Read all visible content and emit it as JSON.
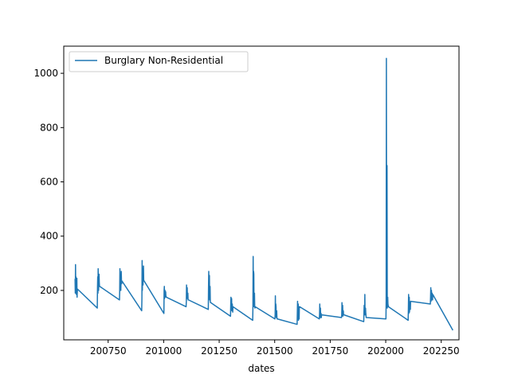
{
  "chart_data": {
    "type": "line",
    "xlabel": "dates",
    "ylabel": "",
    "xlim": [
      200550,
      202330
    ],
    "ylim": [
      18,
      1100
    ],
    "x_ticks": [
      200750,
      201000,
      201250,
      201500,
      201750,
      202000,
      202250
    ],
    "y_ticks": [
      200,
      400,
      600,
      800,
      1000
    ],
    "grid": false,
    "legend": "top-left",
    "series": [
      {
        "name": "Burglary Non-Residential",
        "color": "#1f77b4",
        "x": [
          200601,
          200602,
          200603,
          200604,
          200605,
          200606,
          200607,
          200608,
          200609,
          200610,
          200611,
          200612,
          200701,
          200702,
          200703,
          200704,
          200705,
          200706,
          200707,
          200708,
          200709,
          200710,
          200711,
          200712,
          200801,
          200802,
          200803,
          200804,
          200805,
          200806,
          200807,
          200808,
          200809,
          200810,
          200811,
          200812,
          200901,
          200902,
          200903,
          200904,
          200905,
          200906,
          200907,
          200908,
          200909,
          200910,
          200911,
          200912,
          201001,
          201002,
          201003,
          201004,
          201005,
          201006,
          201007,
          201008,
          201009,
          201010,
          201011,
          201012,
          201101,
          201102,
          201103,
          201104,
          201105,
          201106,
          201107,
          201108,
          201109,
          201110,
          201111,
          201112,
          201201,
          201202,
          201203,
          201204,
          201205,
          201206,
          201207,
          201208,
          201209,
          201210,
          201211,
          201212,
          201301,
          201302,
          201303,
          201304,
          201305,
          201306,
          201307,
          201308,
          201309,
          201310,
          201311,
          201312,
          201401,
          201402,
          201403,
          201404,
          201405,
          201406,
          201407,
          201408,
          201409,
          201410,
          201411,
          201412,
          201501,
          201502,
          201503,
          201504,
          201505,
          201506,
          201507,
          201508,
          201509,
          201510,
          201511,
          201512,
          201601,
          201602,
          201603,
          201604,
          201605,
          201606,
          201607,
          201608,
          201609,
          201610,
          201611,
          201612,
          201701,
          201702,
          201703,
          201704,
          201705,
          201706,
          201707,
          201708,
          201709,
          201710,
          201711,
          201712,
          201801,
          201802,
          201803,
          201804,
          201805,
          201806,
          201807,
          201808,
          201809,
          201810,
          201811,
          201812,
          201901,
          201902,
          201903,
          201904,
          201905,
          201906,
          201907,
          201908,
          201909,
          201910,
          201911,
          201912,
          202001,
          202002,
          202003,
          202004,
          202005,
          202006,
          202007,
          202008,
          202009,
          202010,
          202011,
          202012,
          202101,
          202102,
          202103,
          202104,
          202105,
          202106,
          202107,
          202108,
          202109,
          202110,
          202111,
          202112,
          202201,
          202202,
          202203,
          202204,
          202205,
          202206,
          202207,
          202208,
          202209,
          202210,
          202211,
          202212,
          202301
        ],
        "y": [
          240,
          190,
          295,
          210,
          250,
          200,
          185,
          215,
          245,
          175,
          195,
          205,
          135,
          210,
          250,
          190,
          280,
          220,
          200,
          240,
          260,
          230,
          215,
          215,
          165,
          200,
          280,
          210,
          240,
          255,
          200,
          230,
          270,
          235,
          225,
          235,
          125,
          170,
          310,
          200,
          260,
          280,
          220,
          250,
          290,
          240,
          235,
          235,
          115,
          200,
          215,
          170,
          190,
          200,
          175,
          185,
          195,
          180,
          178,
          175,
          140,
          160,
          220,
          180,
          200,
          210,
          170,
          175,
          190,
          165,
          165,
          165,
          130,
          210,
          270,
          175,
          230,
          255,
          165,
          190,
          215,
          160,
          155,
          155,
          105,
          145,
          175,
          130,
          160,
          170,
          125,
          140,
          150,
          130,
          120,
          140,
          90,
          140,
          325,
          170,
          270,
          260,
          140,
          170,
          190,
          140,
          135,
          140,
          95,
          110,
          180,
          115,
          150,
          140,
          100,
          115,
          125,
          100,
          95,
          95,
          75,
          120,
          160,
          100,
          140,
          150,
          90,
          105,
          120,
          95,
          140,
          140,
          95,
          110,
          150,
          100,
          125,
          135,
          100,
          110,
          115,
          100,
          110,
          110,
          100,
          110,
          155,
          115,
          135,
          145,
          105,
          115,
          125,
          110,
          110,
          110,
          85,
          120,
          145,
          110,
          130,
          185,
          110,
          125,
          135,
          120,
          110,
          100,
          95,
          160,
          1055,
          180,
          640,
          660,
          135,
          160,
          175,
          150,
          145,
          140,
          90,
          130,
          185,
          115,
          160,
          175,
          120,
          145,
          155,
          140,
          130,
          160,
          150,
          175,
          210,
          160,
          190,
          200,
          165,
          180,
          190,
          170,
          165,
          185,
          55
        ]
      }
    ]
  }
}
